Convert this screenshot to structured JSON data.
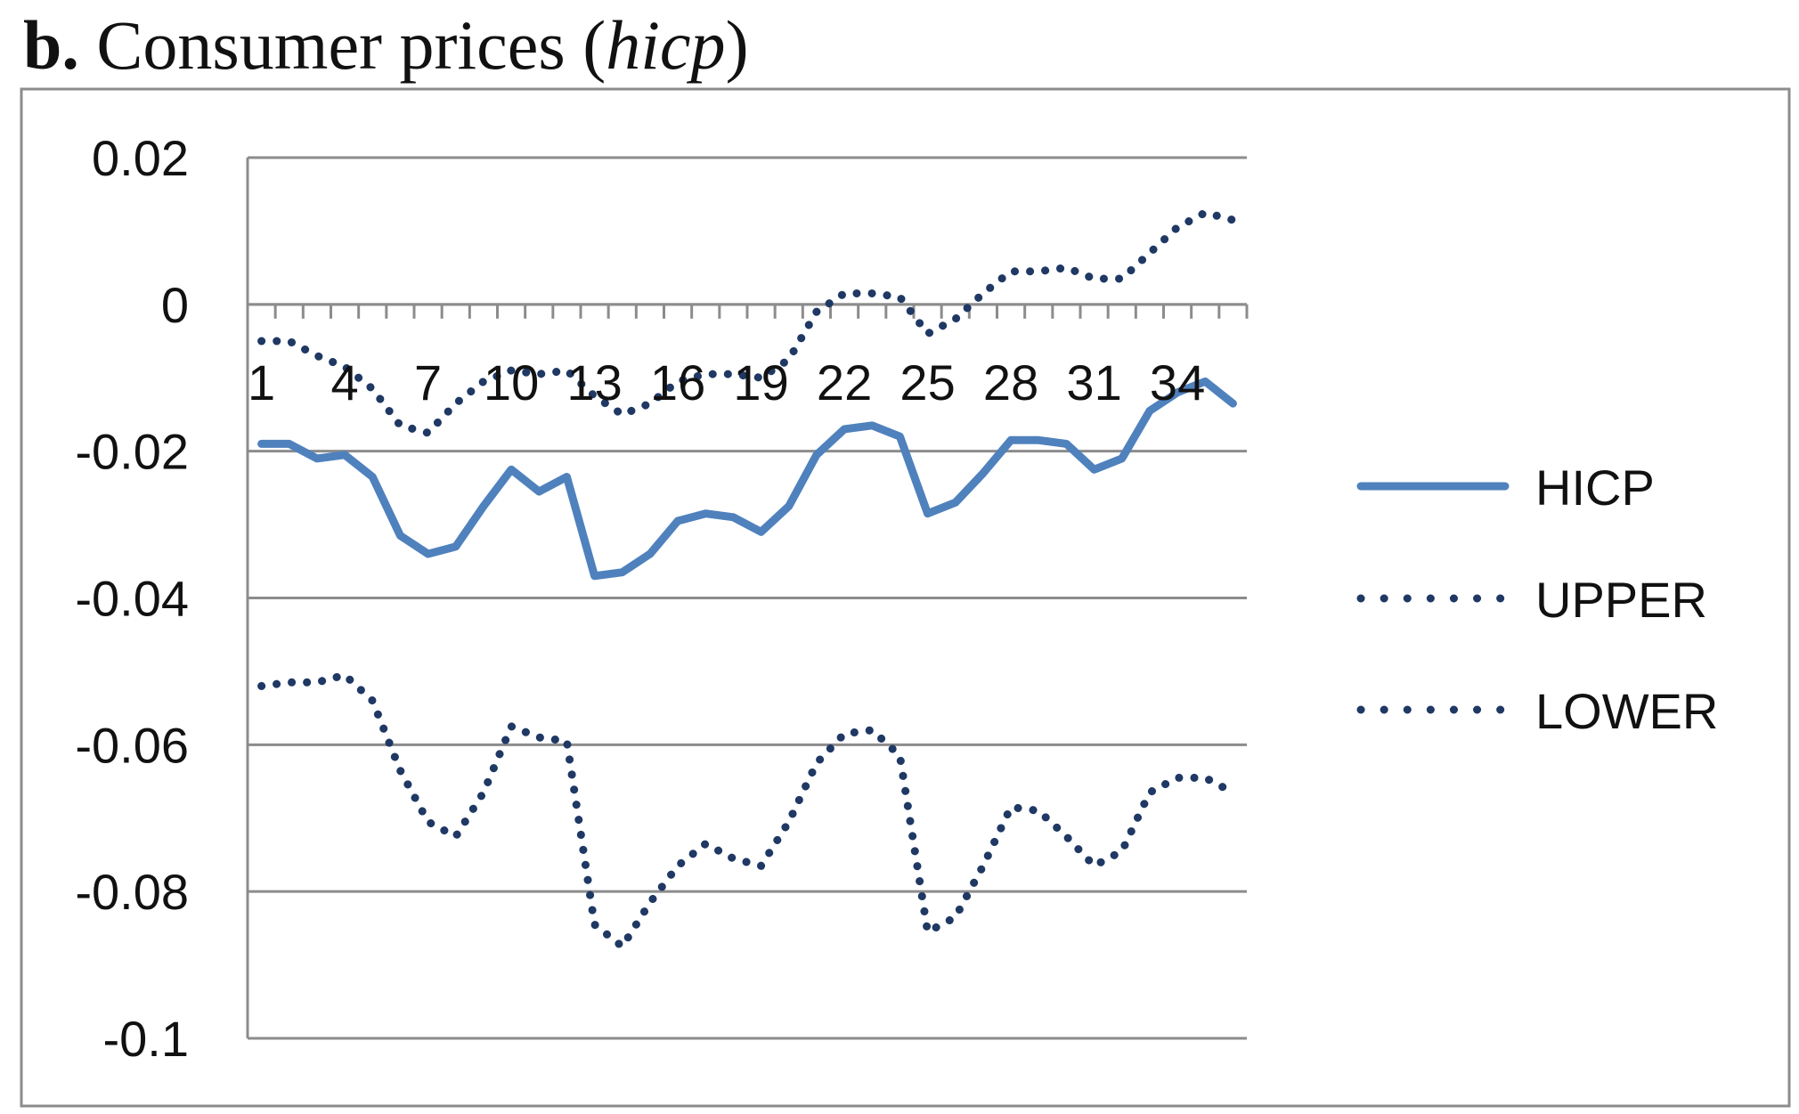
{
  "figure": {
    "panel_label": "b.",
    "title_text": "Consumer prices (",
    "title_var": "hicp",
    "title_close": ")"
  },
  "chart_data": {
    "type": "line",
    "title": "b. Consumer prices (hicp)",
    "xlabel": "",
    "ylabel": "",
    "ylim": [
      -0.1,
      0.02
    ],
    "yticks": [
      0.02,
      0,
      -0.02,
      -0.04,
      -0.06,
      -0.08,
      -0.1
    ],
    "ytick_labels": [
      "0.02",
      "0",
      "-0.02",
      "-0.04",
      "-0.06",
      "-0.08",
      "-0.1"
    ],
    "xtick_labels": [
      "1",
      "4",
      "7",
      "10",
      "13",
      "16",
      "19",
      "22",
      "25",
      "28",
      "31",
      "34"
    ],
    "xtick_values": [
      1,
      4,
      7,
      10,
      13,
      16,
      19,
      22,
      25,
      28,
      31,
      34
    ],
    "grid": true,
    "legend_position": "right",
    "x": [
      1,
      2,
      3,
      4,
      5,
      6,
      7,
      8,
      9,
      10,
      11,
      12,
      13,
      14,
      15,
      16,
      17,
      18,
      19,
      20,
      21,
      22,
      23,
      24,
      25,
      26,
      27,
      28,
      29,
      30,
      31,
      32,
      33,
      34,
      35,
      36
    ],
    "series": [
      {
        "name": "HICP",
        "style": "solid",
        "color": "#4f81bd",
        "values": [
          -0.019,
          -0.019,
          -0.021,
          -0.0205,
          -0.0235,
          -0.0315,
          -0.034,
          -0.033,
          -0.0275,
          -0.0225,
          -0.0255,
          -0.0235,
          -0.037,
          -0.0365,
          -0.034,
          -0.0295,
          -0.0285,
          -0.029,
          -0.031,
          -0.0275,
          -0.0205,
          -0.017,
          -0.0165,
          -0.018,
          -0.0285,
          -0.027,
          -0.023,
          -0.0185,
          -0.0185,
          -0.019,
          -0.0225,
          -0.021,
          -0.0145,
          -0.012,
          -0.0105,
          -0.0135
        ]
      },
      {
        "name": "UPPER",
        "style": "dotted",
        "color": "#1f3864",
        "values": [
          -0.005,
          -0.005,
          -0.007,
          -0.0085,
          -0.0115,
          -0.0165,
          -0.0175,
          -0.0135,
          -0.0105,
          -0.009,
          -0.0095,
          -0.009,
          -0.0125,
          -0.015,
          -0.0135,
          -0.0105,
          -0.0095,
          -0.0095,
          -0.01,
          -0.0075,
          -0.001,
          0.0015,
          0.0015,
          0.001,
          -0.004,
          -0.002,
          0.0015,
          0.0045,
          0.0045,
          0.005,
          0.0035,
          0.0035,
          0.007,
          0.0105,
          0.0125,
          0.0115
        ]
      },
      {
        "name": "LOWER",
        "style": "dotted",
        "color": "#1f3864",
        "values": [
          -0.052,
          -0.0515,
          -0.0515,
          -0.0505,
          -0.054,
          -0.0635,
          -0.0705,
          -0.0725,
          -0.0665,
          -0.0575,
          -0.059,
          -0.0595,
          -0.0845,
          -0.0875,
          -0.0815,
          -0.0765,
          -0.0735,
          -0.0755,
          -0.0765,
          -0.0705,
          -0.0625,
          -0.0585,
          -0.058,
          -0.0615,
          -0.0855,
          -0.0835,
          -0.0765,
          -0.0685,
          -0.069,
          -0.0725,
          -0.0765,
          -0.0745,
          -0.0665,
          -0.0645,
          -0.0645,
          -0.0665
        ]
      }
    ]
  }
}
